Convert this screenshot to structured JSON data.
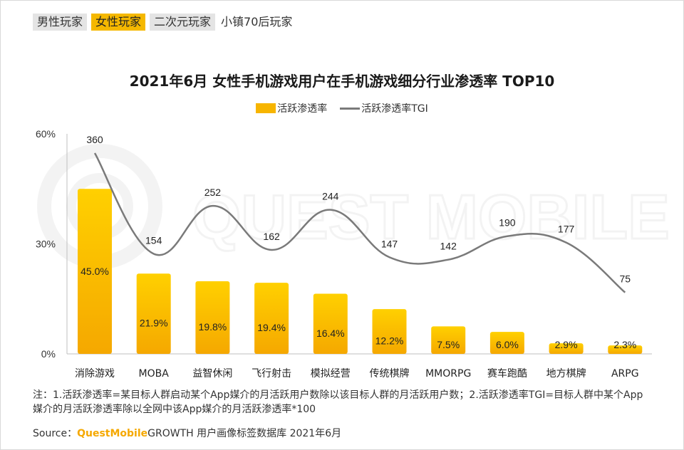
{
  "tabs": [
    {
      "label": "男性玩家"
    },
    {
      "label": "女性玩家"
    },
    {
      "label": "二次元玩家"
    },
    {
      "label": "小镇70后玩家"
    }
  ],
  "watermark": "QUEST MOBILE",
  "note": "注：1.活跃渗透率=某目标人群启动某个App媒介的月活跃用户数除以该目标人群的月活跃用户数；2.活跃渗透率TGI=目标人群中某个App媒介的月活跃渗透率除以全网中该App媒介的月活跃渗透率*100",
  "source": {
    "prefix": "Source：",
    "brand": "QuestMobile",
    "text": "GROWTH 用户画像标签数据库 2021年6月"
  },
  "colors": {
    "bar_top": "#ffd000",
    "bar_bottom": "#f5a800",
    "line": "#7a7a7a",
    "active_tab": "#f5b800"
  },
  "chart_data": {
    "type": "bar",
    "title": "2021年6月 女性手机游戏用户在手机游戏细分行业渗透率 TOP10",
    "categories": [
      "消除游戏",
      "MOBA",
      "益智休闲",
      "飞行射击",
      "模拟经营",
      "传统棋牌",
      "MMORPG",
      "赛车跑酷",
      "地方棋牌",
      "ARPG"
    ],
    "series": [
      {
        "name": "活跃渗透率",
        "type": "bar",
        "values": [
          45.0,
          21.9,
          19.8,
          19.4,
          16.4,
          12.2,
          7.5,
          6.0,
          2.9,
          2.3
        ],
        "labels": [
          "45.0%",
          "21.9%",
          "19.8%",
          "19.4%",
          "16.4%",
          "12.2%",
          "7.5%",
          "6.0%",
          "2.9%",
          "2.3%"
        ]
      },
      {
        "name": "活跃渗透率TGI",
        "type": "line",
        "values": [
          360,
          154,
          252,
          162,
          244,
          147,
          142,
          190,
          177,
          75
        ]
      }
    ],
    "y_ticks": [
      "0%",
      "30%",
      "60%"
    ],
    "ylim": [
      0,
      60
    ],
    "legend_position": "top-center",
    "grid": false
  }
}
